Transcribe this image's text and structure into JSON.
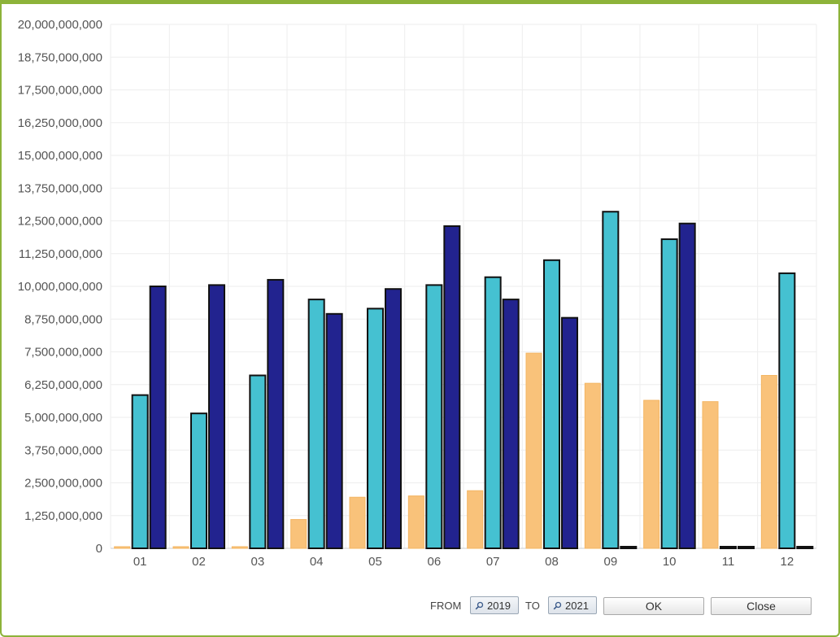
{
  "chart_data": {
    "type": "bar",
    "categories": [
      "01",
      "02",
      "03",
      "04",
      "05",
      "06",
      "07",
      "08",
      "09",
      "10",
      "11",
      "12"
    ],
    "series": [
      {
        "values": [
          0,
          0,
          0,
          1100000000,
          1950000000,
          2000000000,
          2200000000,
          7450000000,
          6300000000,
          5650000000,
          5600000000,
          6600000000
        ],
        "color": "#f9c27a"
      },
      {
        "values": [
          5850000000,
          5150000000,
          6600000000,
          9500000000,
          9150000000,
          10050000000,
          10350000000,
          11000000000,
          12850000000,
          11800000000,
          0,
          10500000000
        ],
        "color": "#45c1d1"
      },
      {
        "values": [
          10000000000,
          10050000000,
          10250000000,
          8950000000,
          9900000000,
          12300000000,
          9500000000,
          8800000000,
          0,
          12400000000,
          0,
          0
        ],
        "color": "#22238f"
      }
    ],
    "y_ticks": [
      "0",
      "1,250,000,000",
      "2,500,000,000",
      "3,750,000,000",
      "5,000,000,000",
      "6,250,000,000",
      "7,500,000,000",
      "8,750,000,000",
      "10,000,000,000",
      "11,250,000,000",
      "12,500,000,000",
      "13,750,000,000",
      "15,000,000,000",
      "16,250,000,000",
      "17,500,000,000",
      "18,750,000,000",
      "20,000,000,000"
    ],
    "ylim": [
      0,
      20000000000
    ],
    "grid": true,
    "legend": "none"
  },
  "controls": {
    "from_label": "FROM",
    "from_year": "2019",
    "to_label": "TO",
    "to_year": "2021",
    "ok_label": "OK",
    "close_label": "Close"
  },
  "colors": {
    "frame": "#8db33a",
    "grid": "#eeeeee"
  }
}
